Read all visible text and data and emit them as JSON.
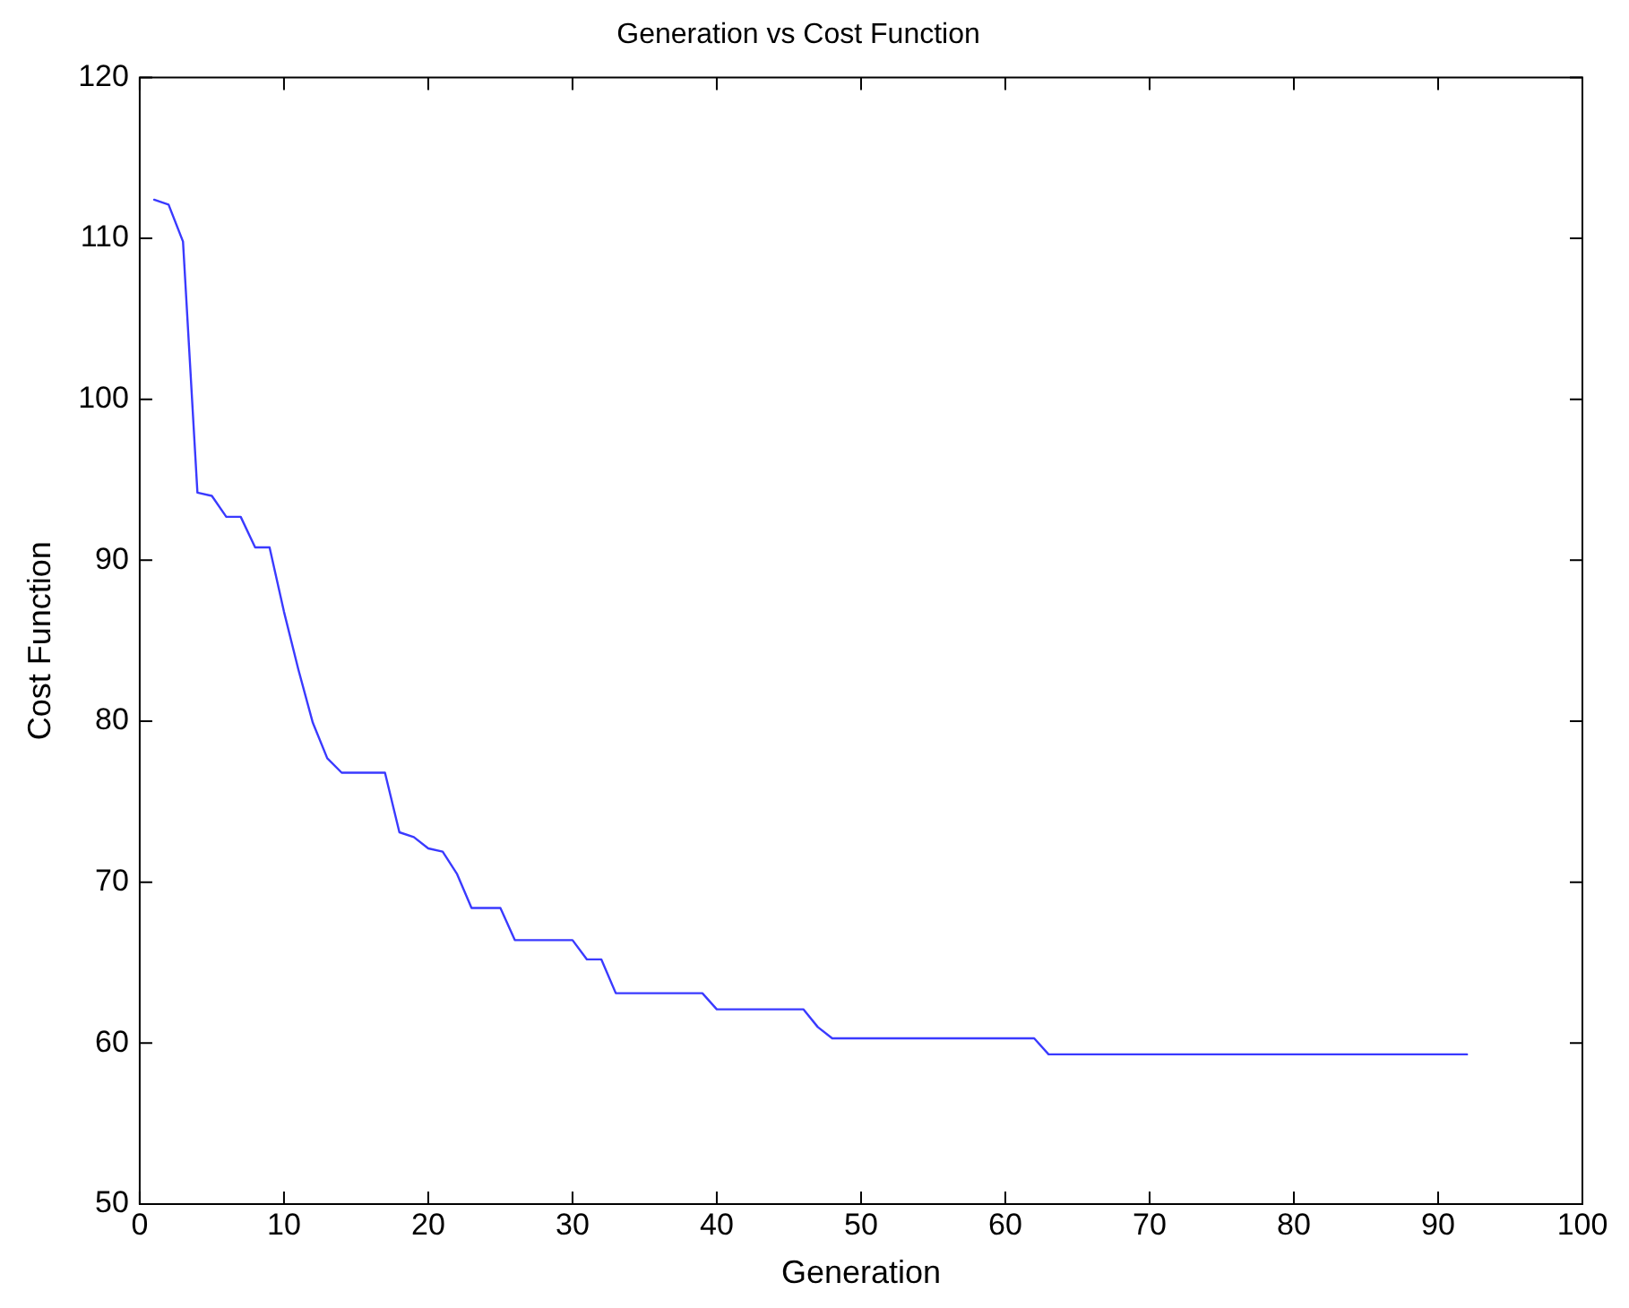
{
  "chart_data": {
    "type": "line",
    "title": "Generation vs Cost Function",
    "xlabel": "Generation",
    "ylabel": "Cost Function",
    "xlim": [
      0,
      100
    ],
    "xticks": [
      0,
      10,
      20,
      30,
      40,
      50,
      60,
      70,
      80,
      90,
      100
    ],
    "ylim": [
      50,
      120
    ],
    "yticks": [
      50,
      60,
      70,
      80,
      90,
      100,
      110,
      120
    ],
    "grid": false,
    "legend": false,
    "marker": "none",
    "line_style": "solid",
    "series": [
      {
        "color": "#3a3aff",
        "x": [
          1,
          2,
          3,
          4,
          5,
          6,
          7,
          8,
          9,
          10,
          11,
          12,
          13,
          14,
          17,
          18,
          19,
          20,
          21,
          22,
          23,
          25,
          26,
          30,
          31,
          32,
          33,
          39,
          40,
          46,
          47,
          48,
          62,
          63,
          92
        ],
        "values": [
          112.4,
          112.1,
          109.8,
          94.2,
          94.0,
          92.7,
          92.7,
          90.8,
          90.8,
          86.8,
          83.2,
          79.9,
          77.7,
          76.8,
          76.8,
          73.1,
          72.8,
          72.1,
          71.9,
          70.5,
          68.4,
          68.4,
          66.4,
          66.4,
          65.2,
          65.2,
          63.1,
          63.1,
          62.1,
          62.1,
          61.0,
          60.3,
          60.3,
          59.3,
          59.3
        ]
      }
    ]
  }
}
